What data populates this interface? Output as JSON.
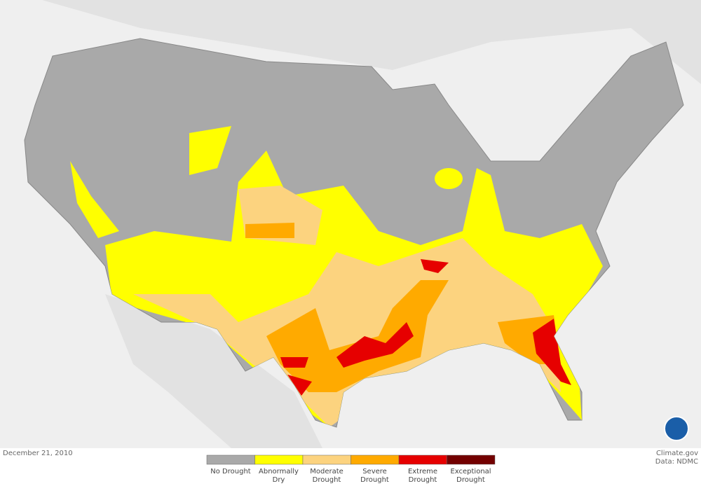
{
  "date": "December 21, 2010",
  "credit": "Climate.gov",
  "source": "Data: NDMC",
  "legend": [
    {
      "label": "No Drought",
      "color": "#a9a9a9"
    },
    {
      "label": "Abnormally Dry",
      "color": "#ffff00"
    },
    {
      "label": "Moderate Drought",
      "color": "#fcd37f"
    },
    {
      "label": "Severe Drought",
      "color": "#ffaa00"
    },
    {
      "label": "Extreme Drought",
      "color": "#e60000"
    },
    {
      "label": "Exceptional Drought",
      "color": "#730000"
    }
  ]
}
